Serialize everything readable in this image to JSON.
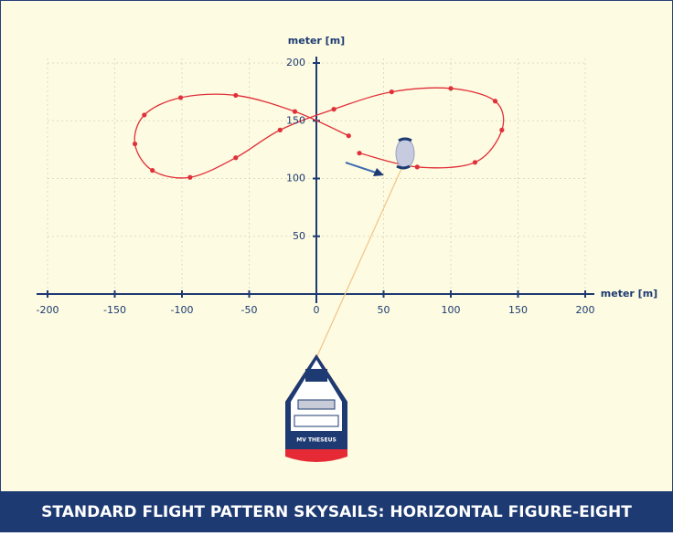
{
  "chart_data": {
    "type": "line",
    "title": "STANDARD FLIGHT PATTERN SKYSAILS: HORIZONTAL FIGURE-EIGHT",
    "x_label": "meter [m]",
    "y_label": "meter [m]",
    "ship_label": "MV THESEUS",
    "xlim": [
      -200,
      200
    ],
    "ylim": [
      0,
      200
    ],
    "xticks": [
      -200,
      -150,
      -100,
      -50,
      0,
      50,
      100,
      150,
      200
    ],
    "yticks": [
      50,
      100,
      150,
      200
    ],
    "grid": true,
    "series": [
      {
        "color": "#e0303a",
        "x": [
          32,
          75,
          118,
          138,
          133,
          100,
          56,
          13,
          -27,
          -60,
          -94,
          -122,
          -135,
          -128,
          -101,
          -60,
          -16,
          24
        ],
        "values": [
          122,
          110,
          114,
          142,
          167,
          178,
          175,
          160,
          142,
          118,
          101,
          107,
          130,
          155,
          170,
          172,
          158,
          137
        ]
      }
    ]
  }
}
